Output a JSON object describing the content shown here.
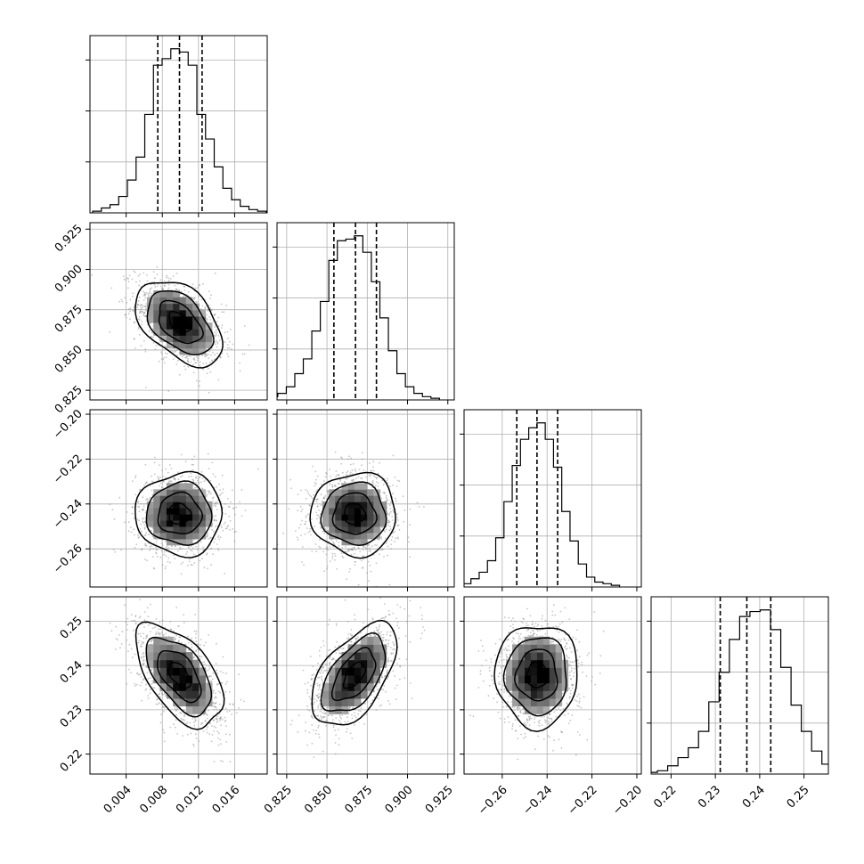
{
  "chart_data": {
    "type": "corner",
    "title": "",
    "parameters": [
      {
        "range": [
          0.0,
          0.0196
        ],
        "ticks": [
          0.004,
          0.008,
          0.012,
          0.016
        ],
        "tick_labels": [
          "0.004",
          "0.008",
          "0.012",
          "0.016"
        ],
        "quantiles": [
          0.0075,
          0.0099,
          0.0124
        ],
        "peak": 0.0099,
        "sigma": 0.0024,
        "hist_bins": 20,
        "hist_counts": [
          0.01,
          0.03,
          0.05,
          0.1,
          0.2,
          0.34,
          0.6,
          0.9,
          0.94,
          1.0,
          0.98,
          0.9,
          0.6,
          0.45,
          0.28,
          0.15,
          0.08,
          0.04,
          0.02,
          0.01
        ]
      },
      {
        "range": [
          0.819,
          0.929
        ],
        "ticks": [
          0.825,
          0.85,
          0.875,
          0.9,
          0.925
        ],
        "tick_labels": [
          "0.825",
          "0.850",
          "0.875",
          "0.900",
          "0.925"
        ],
        "quantiles": [
          0.8543,
          0.8677,
          0.8807
        ],
        "peak": 0.867,
        "sigma": 0.0132,
        "hist_bins": 20,
        "hist_counts": [
          0.02,
          0.04,
          0.08,
          0.16,
          0.25,
          0.42,
          0.6,
          0.85,
          0.97,
          0.98,
          1.0,
          0.9,
          0.72,
          0.5,
          0.3,
          0.16,
          0.08,
          0.04,
          0.02,
          0.01
        ]
      },
      {
        "range": [
          -0.277,
          -0.198
        ],
        "ticks": [
          -0.26,
          -0.24,
          -0.22,
          -0.2
        ],
        "tick_labels": [
          "−0.26",
          "−0.24",
          "−0.22",
          "−0.20"
        ],
        "quantiles": [
          -0.2535,
          -0.2445,
          -0.2353
        ],
        "peak": -0.2445,
        "sigma": 0.0092,
        "hist_bins": 20,
        "hist_counts": [
          0.01,
          0.02,
          0.05,
          0.09,
          0.16,
          0.3,
          0.52,
          0.74,
          0.9,
          0.97,
          1.0,
          0.9,
          0.73,
          0.46,
          0.28,
          0.14,
          0.06,
          0.03,
          0.02,
          0.01
        ]
      },
      {
        "range": [
          0.2155,
          0.2555
        ],
        "ticks": [
          0.22,
          0.23,
          0.24,
          0.25
        ],
        "tick_labels": [
          "0.22",
          "0.23",
          "0.24",
          "0.25"
        ],
        "quantiles": [
          0.2311,
          0.2371,
          0.2425
        ],
        "peak": 0.2378,
        "sigma": 0.0058,
        "hist_bins": 20,
        "hist_counts": [
          0.01,
          0.02,
          0.05,
          0.1,
          0.16,
          0.26,
          0.44,
          0.62,
          0.82,
          0.96,
          0.99,
          1.0,
          0.88,
          0.65,
          0.42,
          0.26,
          0.14,
          0.06,
          0.03,
          0.02
        ]
      }
    ],
    "correlations": [
      [
        1.0,
        -0.45,
        0.0,
        -0.55
      ],
      [
        -0.45,
        1.0,
        0.0,
        0.55
      ],
      [
        0.0,
        0.0,
        1.0,
        0.0
      ],
      [
        -0.55,
        0.55,
        0.0,
        1.0
      ]
    ],
    "contour_levels_sigma": [
      0.5,
      1.0,
      1.5,
      2.0
    ],
    "grid": true,
    "colors": {
      "line": "#000000",
      "grid": "#b0b0b0",
      "scatter": "#8c8c8c",
      "density_dark": "#000000",
      "density_light": "#ffffff"
    }
  }
}
